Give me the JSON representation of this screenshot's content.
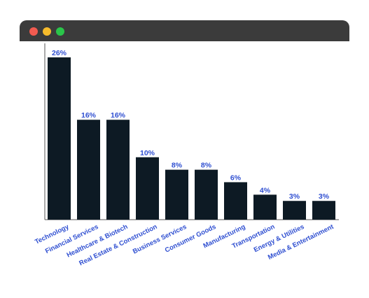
{
  "window": {
    "dots": [
      {
        "name": "close-dot",
        "color": "#f25b50"
      },
      {
        "name": "minimize-dot",
        "color": "#f6bb2c"
      },
      {
        "name": "maximize-dot",
        "color": "#2ac54a"
      }
    ],
    "bar_color": "#3b3b3b"
  },
  "colors": {
    "bar": "#0d1a24",
    "value_label": "#2f4fd1",
    "category_label": "#2f4fd1",
    "axis": "#555555"
  },
  "chart_data": {
    "type": "bar",
    "categories": [
      "Technology",
      "Financial Services",
      "Healthcare & Biotech",
      "Real Estate & Construction",
      "Business Services",
      "Consumer Goods",
      "Manufacturing",
      "Transportation",
      "Energy & Utilities",
      "Media & Entertainment"
    ],
    "values": [
      26,
      16,
      16,
      10,
      8,
      8,
      6,
      4,
      3,
      3
    ],
    "value_labels": [
      "26%",
      "16%",
      "16%",
      "10%",
      "8%",
      "8%",
      "6%",
      "4%",
      "3%",
      "3%"
    ],
    "unit": "%",
    "ylim": [
      0,
      26
    ],
    "grid": false,
    "legend": "none"
  }
}
